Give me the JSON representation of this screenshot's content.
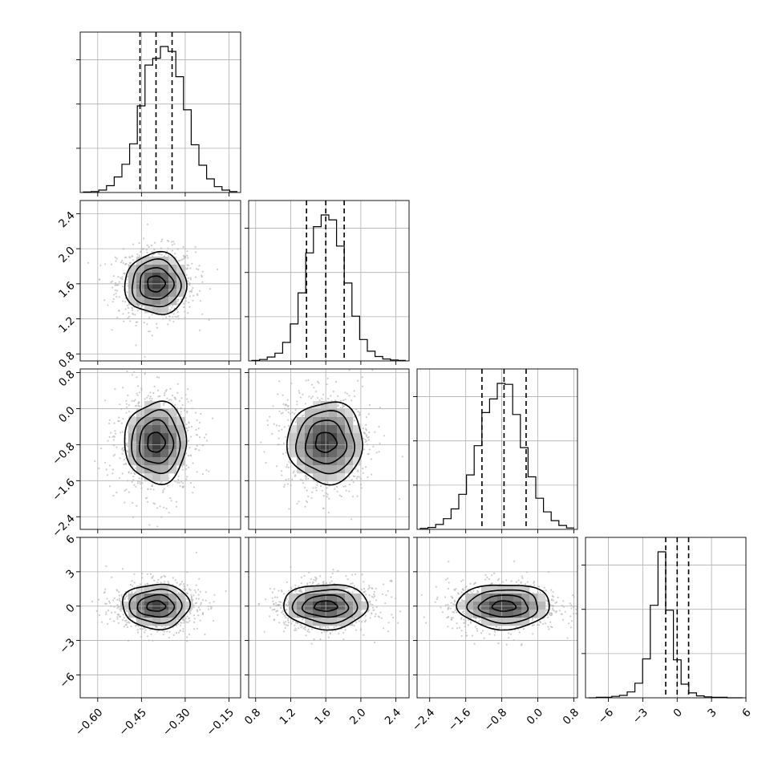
{
  "chart_data": {
    "type": "corner",
    "title": "",
    "parameters": [
      {
        "index": 0,
        "center": -0.4,
        "quantiles": [
          -0.455,
          -0.4,
          -0.345
        ],
        "range": [
          -0.66,
          -0.11
        ],
        "ticks": [
          -0.6,
          -0.45,
          -0.3,
          -0.15
        ],
        "tick_labels": [
          "−0.60",
          "−0.45",
          "−0.30",
          "−0.15"
        ],
        "hist_counts": [
          1,
          2,
          5,
          14,
          32,
          58,
          100,
          178,
          262,
          276,
          300,
          290,
          238,
          170,
          98,
          56,
          28,
          12,
          5,
          2
        ]
      },
      {
        "index": 1,
        "center": 1.6,
        "quantiles": [
          1.38,
          1.6,
          1.81
        ],
        "range": [
          0.72,
          2.55
        ],
        "ticks": [
          0.8,
          1.2,
          1.6,
          2.0,
          2.4
        ],
        "tick_labels": [
          "0.8",
          "1.2",
          "1.6",
          "2.0",
          "2.4"
        ],
        "hist_counts": [
          1,
          3,
          8,
          16,
          38,
          76,
          140,
          222,
          276,
          300,
          290,
          236,
          160,
          92,
          44,
          20,
          9,
          4,
          2,
          1
        ]
      },
      {
        "index": 2,
        "center": -0.75,
        "quantiles": [
          -1.24,
          -0.75,
          -0.26
        ],
        "range": [
          -2.68,
          0.88
        ],
        "ticks": [
          -2.4,
          -1.6,
          -0.8,
          0.0,
          0.8
        ],
        "tick_labels": [
          "−2.4",
          "−1.6",
          "−0.8",
          "0.0",
          "0.8"
        ],
        "hist_counts": [
          2,
          4,
          10,
          22,
          42,
          72,
          112,
          172,
          240,
          268,
          300,
          298,
          236,
          168,
          108,
          64,
          36,
          18,
          8,
          3
        ]
      },
      {
        "index": 3,
        "center": 0.0,
        "quantiles": [
          -1.0,
          0.0,
          1.0
        ],
        "range": [
          -8.0,
          6.0
        ],
        "ticks": [
          -6,
          -3,
          0,
          3,
          6
        ],
        "tick_labels": [
          "−6",
          "−3",
          "0",
          "3",
          "6"
        ],
        "hist_counts": [
          0,
          1,
          1,
          3,
          5,
          12,
          30,
          80,
          190,
          300,
          180,
          78,
          28,
          10,
          4,
          2,
          1,
          1,
          0,
          0
        ]
      }
    ],
    "pairs": [
      {
        "row": 1,
        "col": 0,
        "center": [
          -0.4,
          1.6
        ],
        "half_widths": [
          [
            0.03,
            0.09
          ],
          [
            0.058,
            0.18
          ],
          [
            0.083,
            0.27
          ],
          [
            0.106,
            0.35
          ]
        ]
      },
      {
        "row": 2,
        "col": 0,
        "center": [
          -0.4,
          -0.75
        ],
        "half_widths": [
          [
            0.03,
            0.22
          ],
          [
            0.058,
            0.48
          ],
          [
            0.083,
            0.69
          ],
          [
            0.106,
            0.9
          ]
        ]
      },
      {
        "row": 2,
        "col": 1,
        "center": [
          1.6,
          -0.75
        ],
        "half_widths": [
          [
            0.12,
            0.22
          ],
          [
            0.23,
            0.48
          ],
          [
            0.33,
            0.69
          ],
          [
            0.43,
            0.9
          ]
        ]
      },
      {
        "row": 3,
        "col": 0,
        "center": [
          -0.4,
          0.0
        ],
        "half_widths": [
          [
            0.032,
            0.45
          ],
          [
            0.063,
            0.95
          ],
          [
            0.09,
            1.45
          ],
          [
            0.115,
            1.95
          ]
        ]
      },
      {
        "row": 3,
        "col": 1,
        "center": [
          1.6,
          0.0
        ],
        "half_widths": [
          [
            0.13,
            0.45
          ],
          [
            0.26,
            0.95
          ],
          [
            0.37,
            1.45
          ],
          [
            0.48,
            1.95
          ]
        ]
      },
      {
        "row": 3,
        "col": 2,
        "center": [
          -0.75,
          0.0
        ],
        "half_widths": [
          [
            0.26,
            0.45
          ],
          [
            0.54,
            0.95
          ],
          [
            0.78,
            1.45
          ],
          [
            1.03,
            1.95
          ]
        ]
      }
    ],
    "contour_levels_sigma": [
      0.5,
      1.0,
      1.5,
      2.0
    ],
    "grid": true
  }
}
